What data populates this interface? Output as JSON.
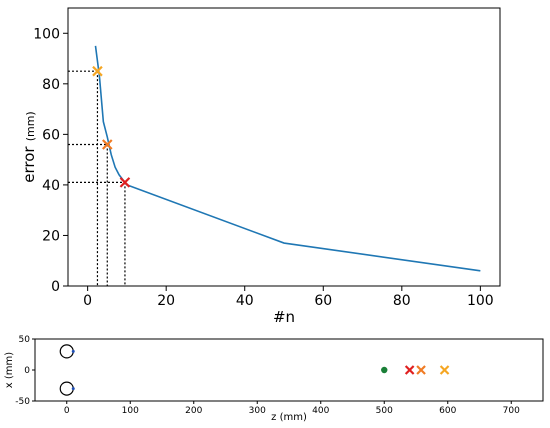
{
  "chart_data": [
    {
      "type": "line",
      "title": "",
      "xlabel": "#n",
      "ylabel": "error",
      "ylabel_unit": "(mm)",
      "xlim": [
        -5,
        105
      ],
      "ylim": [
        0,
        110
      ],
      "xticks": [
        "0",
        "20",
        "40",
        "60",
        "80",
        "100"
      ],
      "yticks": [
        "0",
        "20",
        "40",
        "60",
        "80",
        "100"
      ],
      "grid": false,
      "legend": "none",
      "series": [
        {
          "color": "#1f77b4",
          "x": [
            2,
            3,
            4,
            5,
            6,
            7,
            8,
            9,
            10,
            50,
            100
          ],
          "y": [
            95,
            83,
            65,
            59,
            52,
            47,
            44,
            42,
            40,
            17,
            6
          ]
        }
      ],
      "markers": [
        {
          "x": 2.5,
          "y": 85,
          "symbol": "x",
          "color": "#f5a623"
        },
        {
          "x": 5,
          "y": 56,
          "symbol": "x",
          "color": "#f07b24"
        },
        {
          "x": 9.5,
          "y": 41,
          "symbol": "x",
          "color": "#e02020"
        }
      ],
      "guides": "dotted drop lines from each marker to both axes"
    },
    {
      "type": "scatter",
      "title": "",
      "xlabel": "z",
      "xlabel_unit": "(mm)",
      "ylabel": "x",
      "ylabel_unit": "(mm)",
      "xlim": [
        -50,
        750
      ],
      "ylim": [
        -50,
        50
      ],
      "xticks": [
        "0",
        "100",
        "200",
        "300",
        "400",
        "500",
        "600",
        "700"
      ],
      "yticks": [
        "-50",
        "0",
        "50"
      ],
      "grid": false,
      "legend": "none",
      "objects": [
        {
          "kind": "ring",
          "x": 0,
          "y": 30
        },
        {
          "kind": "ring",
          "x": 0,
          "y": -30
        }
      ],
      "points": [
        {
          "x": 500,
          "y": 0,
          "symbol": "o",
          "color": "#1a7f37"
        },
        {
          "x": 540,
          "y": 0,
          "symbol": "x",
          "color": "#e02020"
        },
        {
          "x": 558,
          "y": 0,
          "symbol": "x",
          "color": "#f07b24"
        },
        {
          "x": 595,
          "y": 0,
          "symbol": "x",
          "color": "#f5a623"
        }
      ]
    }
  ]
}
